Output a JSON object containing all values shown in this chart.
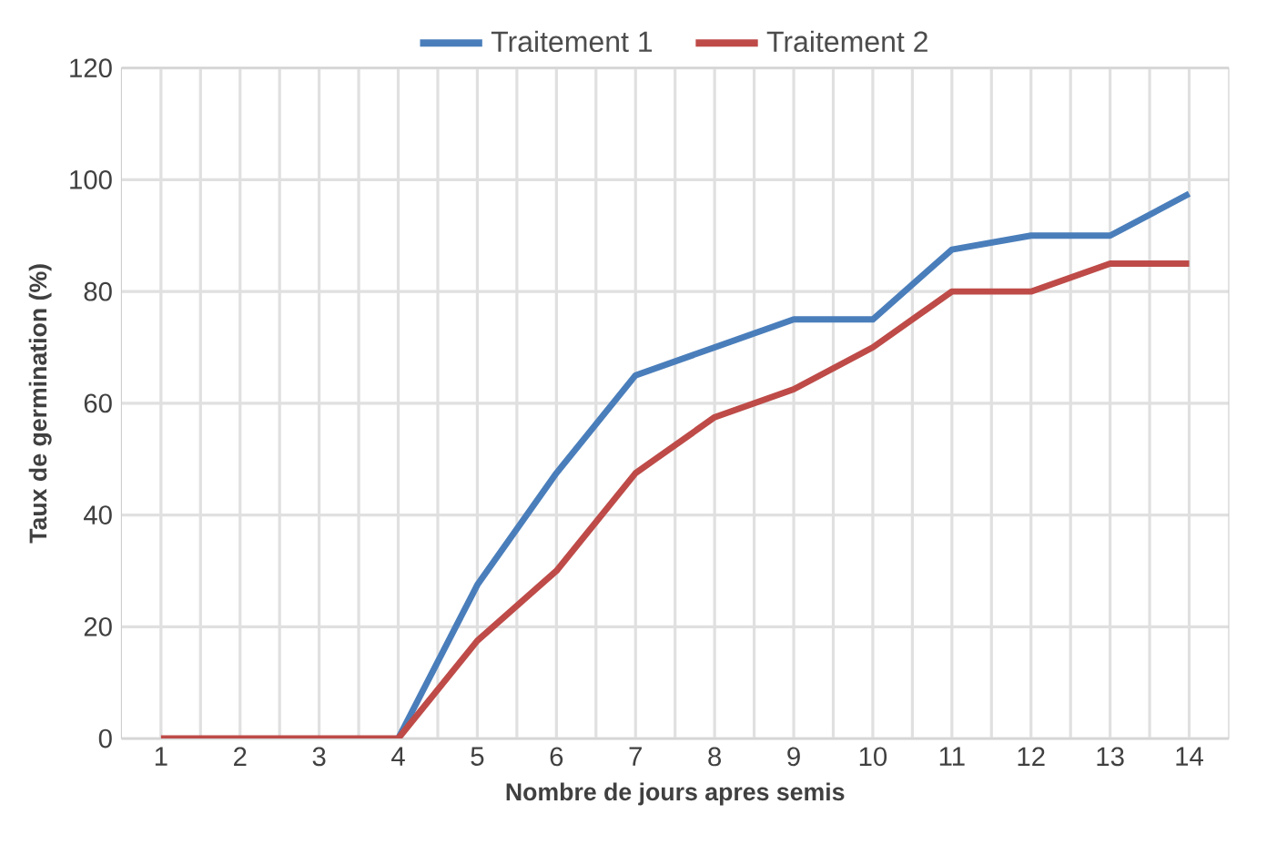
{
  "chart_data": {
    "type": "line",
    "xlabel": "Nombre de jours apres semis",
    "ylabel": "Taux de germination (%)",
    "categories": [
      "1",
      "2",
      "3",
      "4",
      "5",
      "6",
      "7",
      "8",
      "9",
      "10",
      "11",
      "12",
      "13",
      "14"
    ],
    "series": [
      {
        "name": "Traitement 1",
        "color": "#4a7ebb",
        "values": [
          null,
          null,
          null,
          0,
          27.5,
          47.5,
          65,
          70,
          75,
          75,
          87.5,
          90,
          90,
          97.5
        ]
      },
      {
        "name": "Traitement 2",
        "color": "#be4b48",
        "values": [
          0,
          0,
          0,
          0,
          17.5,
          30,
          47.5,
          57.5,
          62.5,
          70,
          80,
          80,
          85,
          85
        ]
      }
    ],
    "ylim": [
      0,
      120
    ],
    "yticks": [
      0,
      20,
      40,
      60,
      80,
      100,
      120
    ],
    "grid": true,
    "legend": "top",
    "marker": "none",
    "line_style": "solid"
  }
}
